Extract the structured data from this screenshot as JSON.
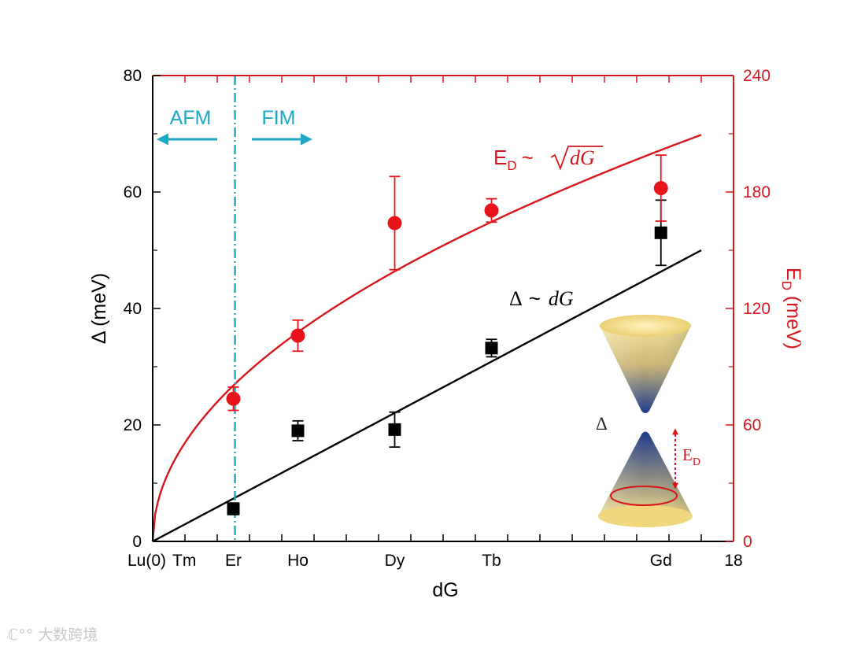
{
  "chart_data": {
    "type": "scatter",
    "xlabel": "dG",
    "ylabel_left": "Δ (meV)",
    "ylabel_right": {
      "main": "E",
      "sub": "D",
      "rest": " (meV)"
    },
    "xlim": [
      0,
      18
    ],
    "ylim_left": [
      0,
      80
    ],
    "ylim_right": [
      0,
      240
    ],
    "x_tick_labels": [
      {
        "x": 0,
        "label": "Lu(0)"
      },
      {
        "x": 1,
        "label": "Tm"
      },
      {
        "x": 2.5,
        "label": "Er"
      },
      {
        "x": 4.5,
        "label": "Ho"
      },
      {
        "x": 7.5,
        "label": "Dy"
      },
      {
        "x": 10.5,
        "label": "Tb"
      },
      {
        "x": 15.75,
        "label": "Gd"
      },
      {
        "x": 18,
        "label": "18"
      }
    ],
    "x_minor_ticks": [
      1,
      2,
      3,
      4,
      5,
      6,
      7,
      8,
      9,
      10,
      11,
      12,
      13,
      14,
      15,
      16,
      17
    ],
    "y_ticks_left": [
      0,
      20,
      40,
      60,
      80
    ],
    "y_ticks_right": [
      0,
      60,
      120,
      180,
      240
    ],
    "series": [
      {
        "name": "Δ",
        "axis": "left",
        "marker": "square",
        "color": "#000000",
        "points": [
          {
            "x": 2.5,
            "y": 5.6,
            "err": 1.0
          },
          {
            "x": 4.5,
            "y": 19.0,
            "err": 1.7
          },
          {
            "x": 7.5,
            "y": 19.2,
            "err": 3.0
          },
          {
            "x": 10.5,
            "y": 33.2,
            "err": 1.5
          },
          {
            "x": 15.75,
            "y": 53.0,
            "err": 5.6
          }
        ]
      },
      {
        "name": "E_D",
        "axis": "right",
        "marker": "circle",
        "color": "#e8141b",
        "points": [
          {
            "x": 2.5,
            "y": 73.5,
            "err": 6.0
          },
          {
            "x": 4.5,
            "y": 106.0,
            "err": 8.0
          },
          {
            "x": 7.5,
            "y": 164.0,
            "err": 24.0
          },
          {
            "x": 10.5,
            "y": 170.5,
            "err": 6.0
          },
          {
            "x": 15.75,
            "y": 182.0,
            "err": 17.0
          }
        ]
      }
    ],
    "fits": [
      {
        "name": "Δ ~ dG",
        "kind": "linear",
        "axis": "left",
        "color": "#000000",
        "slope": 2.941,
        "x_range": [
          0,
          17
        ]
      },
      {
        "name": "E_D ~ sqrt(dG)",
        "kind": "sqrt",
        "axis": "right",
        "color": "#d6161c",
        "coef": 50.8,
        "x_range": [
          0,
          17
        ]
      }
    ],
    "boundary": {
      "x": 2.55,
      "color": "#1aa8c4"
    },
    "annotations": {
      "afm": "AFM",
      "fim": "FIM",
      "delta_fit": {
        "delta": "Δ",
        "tilde": "~",
        "var": "dG"
      },
      "ed_fit": {
        "main": "E",
        "sub": "D",
        "tilde": "~",
        "var": "dG"
      },
      "inset_gap": "Δ",
      "inset_ed": {
        "main": "E",
        "sub": "D"
      }
    }
  },
  "watermark": "大数跨境",
  "colors": {
    "axis_left": "#000000",
    "axis_right": "#d6161c",
    "accent_cyan": "#1aa8c4",
    "cone_gold": "#f0d77a",
    "cone_blue": "#1a3a8c"
  }
}
